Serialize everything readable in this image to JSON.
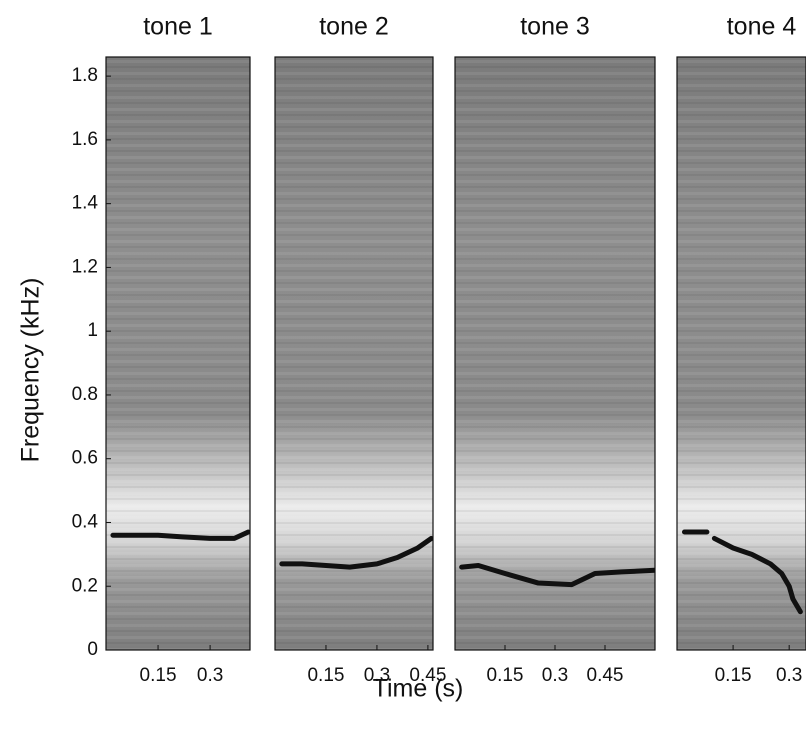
{
  "figure": {
    "xlabel": "Time (s)",
    "ylabel": "Frequency (kHz)"
  },
  "chart_data": [
    {
      "type": "line",
      "title": "tone 1",
      "color": "#111111",
      "x": [
        0.02,
        0.08,
        0.15,
        0.22,
        0.3,
        0.37,
        0.41
      ],
      "values": [
        0.36,
        0.36,
        0.36,
        0.355,
        0.35,
        0.35,
        0.37
      ],
      "xlim": [
        0,
        0.415
      ],
      "xticks": [
        0.15,
        0.3
      ],
      "ylim": [
        0,
        1.86
      ],
      "yticks": [
        0,
        0.2,
        0.4,
        0.6,
        0.8,
        1,
        1.2,
        1.4,
        1.6,
        1.8
      ]
    },
    {
      "type": "line",
      "title": "tone 2",
      "color": "#111111",
      "x": [
        0.02,
        0.08,
        0.15,
        0.22,
        0.3,
        0.36,
        0.42,
        0.46
      ],
      "values": [
        0.27,
        0.27,
        0.265,
        0.26,
        0.27,
        0.29,
        0.32,
        0.35
      ],
      "xlim": [
        0,
        0.465
      ],
      "xticks": [
        0.15,
        0.3,
        0.45
      ],
      "ylim": [
        0,
        1.86
      ]
    },
    {
      "type": "line",
      "title": "tone 3",
      "color": "#111111",
      "x": [
        0.02,
        0.07,
        0.15,
        0.25,
        0.35,
        0.42,
        0.5,
        0.6
      ],
      "values": [
        0.26,
        0.265,
        0.24,
        0.21,
        0.205,
        0.24,
        0.245,
        0.25
      ],
      "xlim": [
        0,
        0.6
      ],
      "xticks": [
        0.15,
        0.3,
        0.45
      ],
      "ylim": [
        0,
        1.86
      ]
    },
    {
      "type": "line",
      "title": "tone 4",
      "color": "#111111",
      "x": [
        0.02,
        0.08,
        0.09,
        0.1,
        0.15,
        0.2,
        0.25,
        0.28,
        0.3,
        0.31,
        0.33
      ],
      "values": [
        0.37,
        0.37,
        null,
        0.35,
        0.32,
        0.3,
        0.27,
        0.24,
        0.2,
        0.16,
        0.12
      ],
      "xlim": [
        0,
        0.345
      ],
      "xticks": [
        0.15,
        0.3
      ],
      "ylim": [
        0,
        1.86
      ]
    }
  ]
}
